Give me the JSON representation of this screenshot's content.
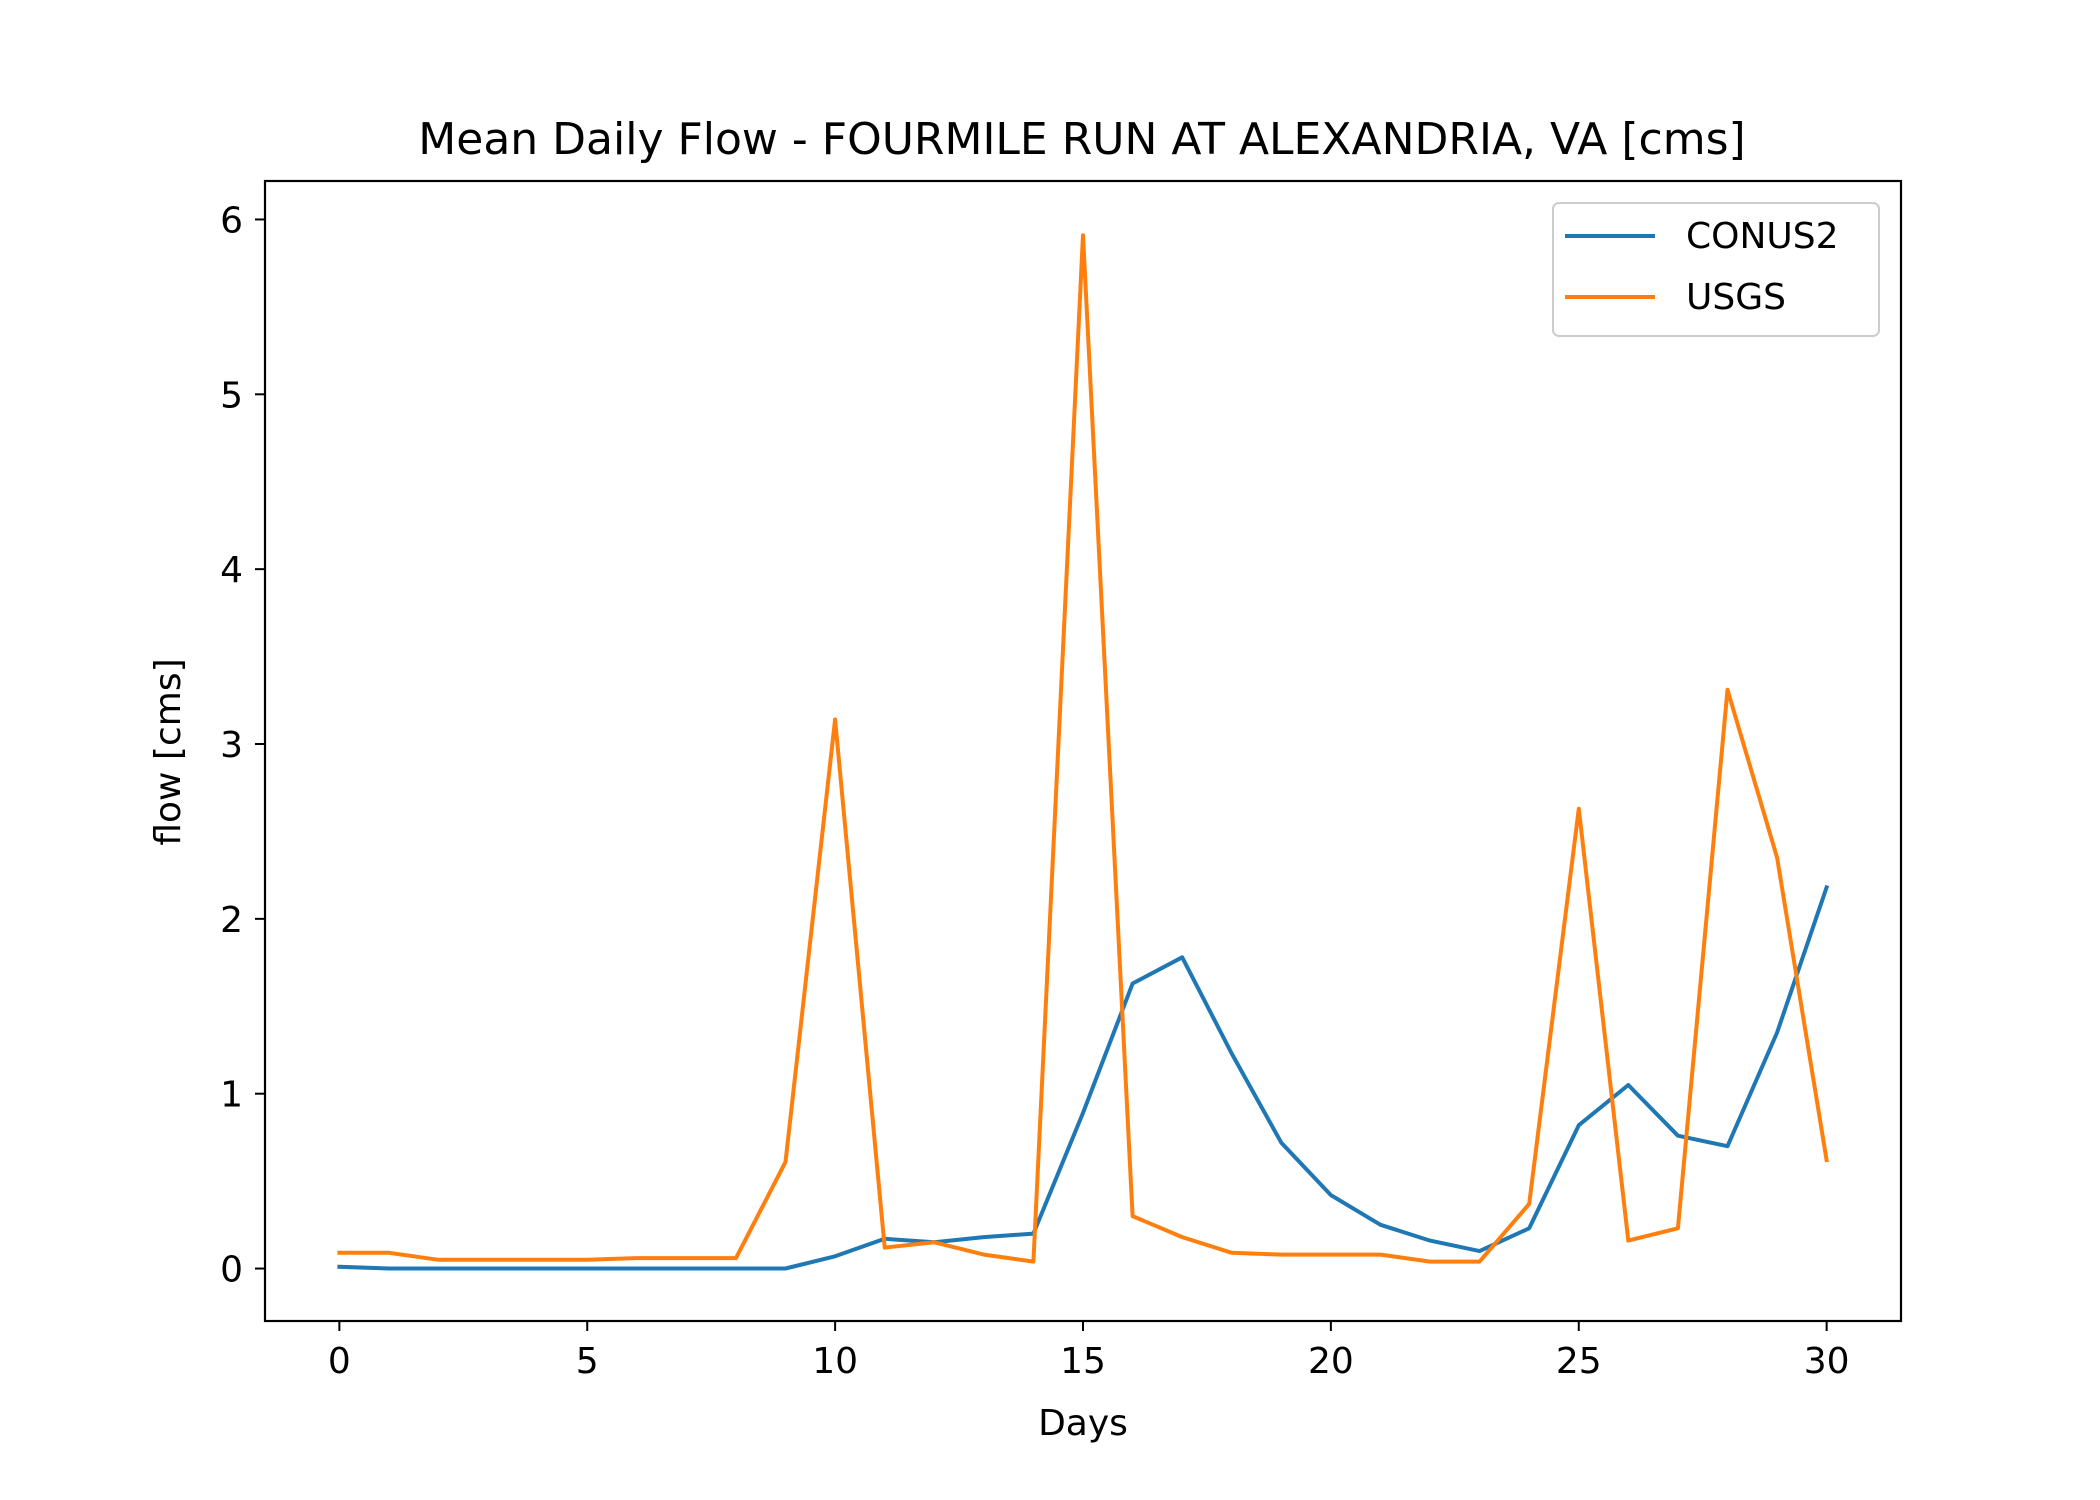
{
  "chart_data": {
    "type": "line",
    "title": "Mean Daily Flow - FOURMILE RUN AT ALEXANDRIA, VA [cms]",
    "xlabel": "Days",
    "ylabel": "flow [cms]",
    "xlim": [
      -1.5,
      31.5
    ],
    "ylim": [
      -0.3,
      6.22
    ],
    "xticks": [
      0,
      5,
      10,
      15,
      20,
      25,
      30
    ],
    "yticks": [
      0,
      1,
      2,
      3,
      4,
      5,
      6
    ],
    "grid": false,
    "legend_position": "top-right",
    "x": [
      0,
      1,
      2,
      3,
      4,
      5,
      6,
      7,
      8,
      9,
      10,
      11,
      12,
      13,
      14,
      15,
      16,
      17,
      18,
      19,
      20,
      21,
      22,
      23,
      24,
      25,
      26,
      27,
      28,
      29,
      30
    ],
    "series": [
      {
        "name": "CONUS2",
        "color": "#1f77b4",
        "values": [
          0.01,
          0.0,
          0.0,
          0.0,
          0.0,
          0.0,
          0.0,
          0.0,
          0.0,
          0.0,
          0.07,
          0.17,
          0.15,
          0.18,
          0.2,
          0.89,
          1.63,
          1.78,
          1.23,
          0.72,
          0.42,
          0.25,
          0.16,
          0.1,
          0.23,
          0.82,
          1.05,
          0.76,
          0.7,
          1.35,
          2.18
        ]
      },
      {
        "name": "USGS",
        "color": "#ff7f0e",
        "values": [
          0.09,
          0.09,
          0.05,
          0.05,
          0.05,
          0.05,
          0.06,
          0.06,
          0.06,
          0.61,
          3.14,
          0.12,
          0.15,
          0.08,
          0.04,
          5.91,
          0.3,
          0.18,
          0.09,
          0.08,
          0.08,
          0.08,
          0.04,
          0.04,
          0.37,
          2.63,
          0.16,
          0.23,
          3.31,
          2.35,
          0.62
        ]
      }
    ]
  }
}
